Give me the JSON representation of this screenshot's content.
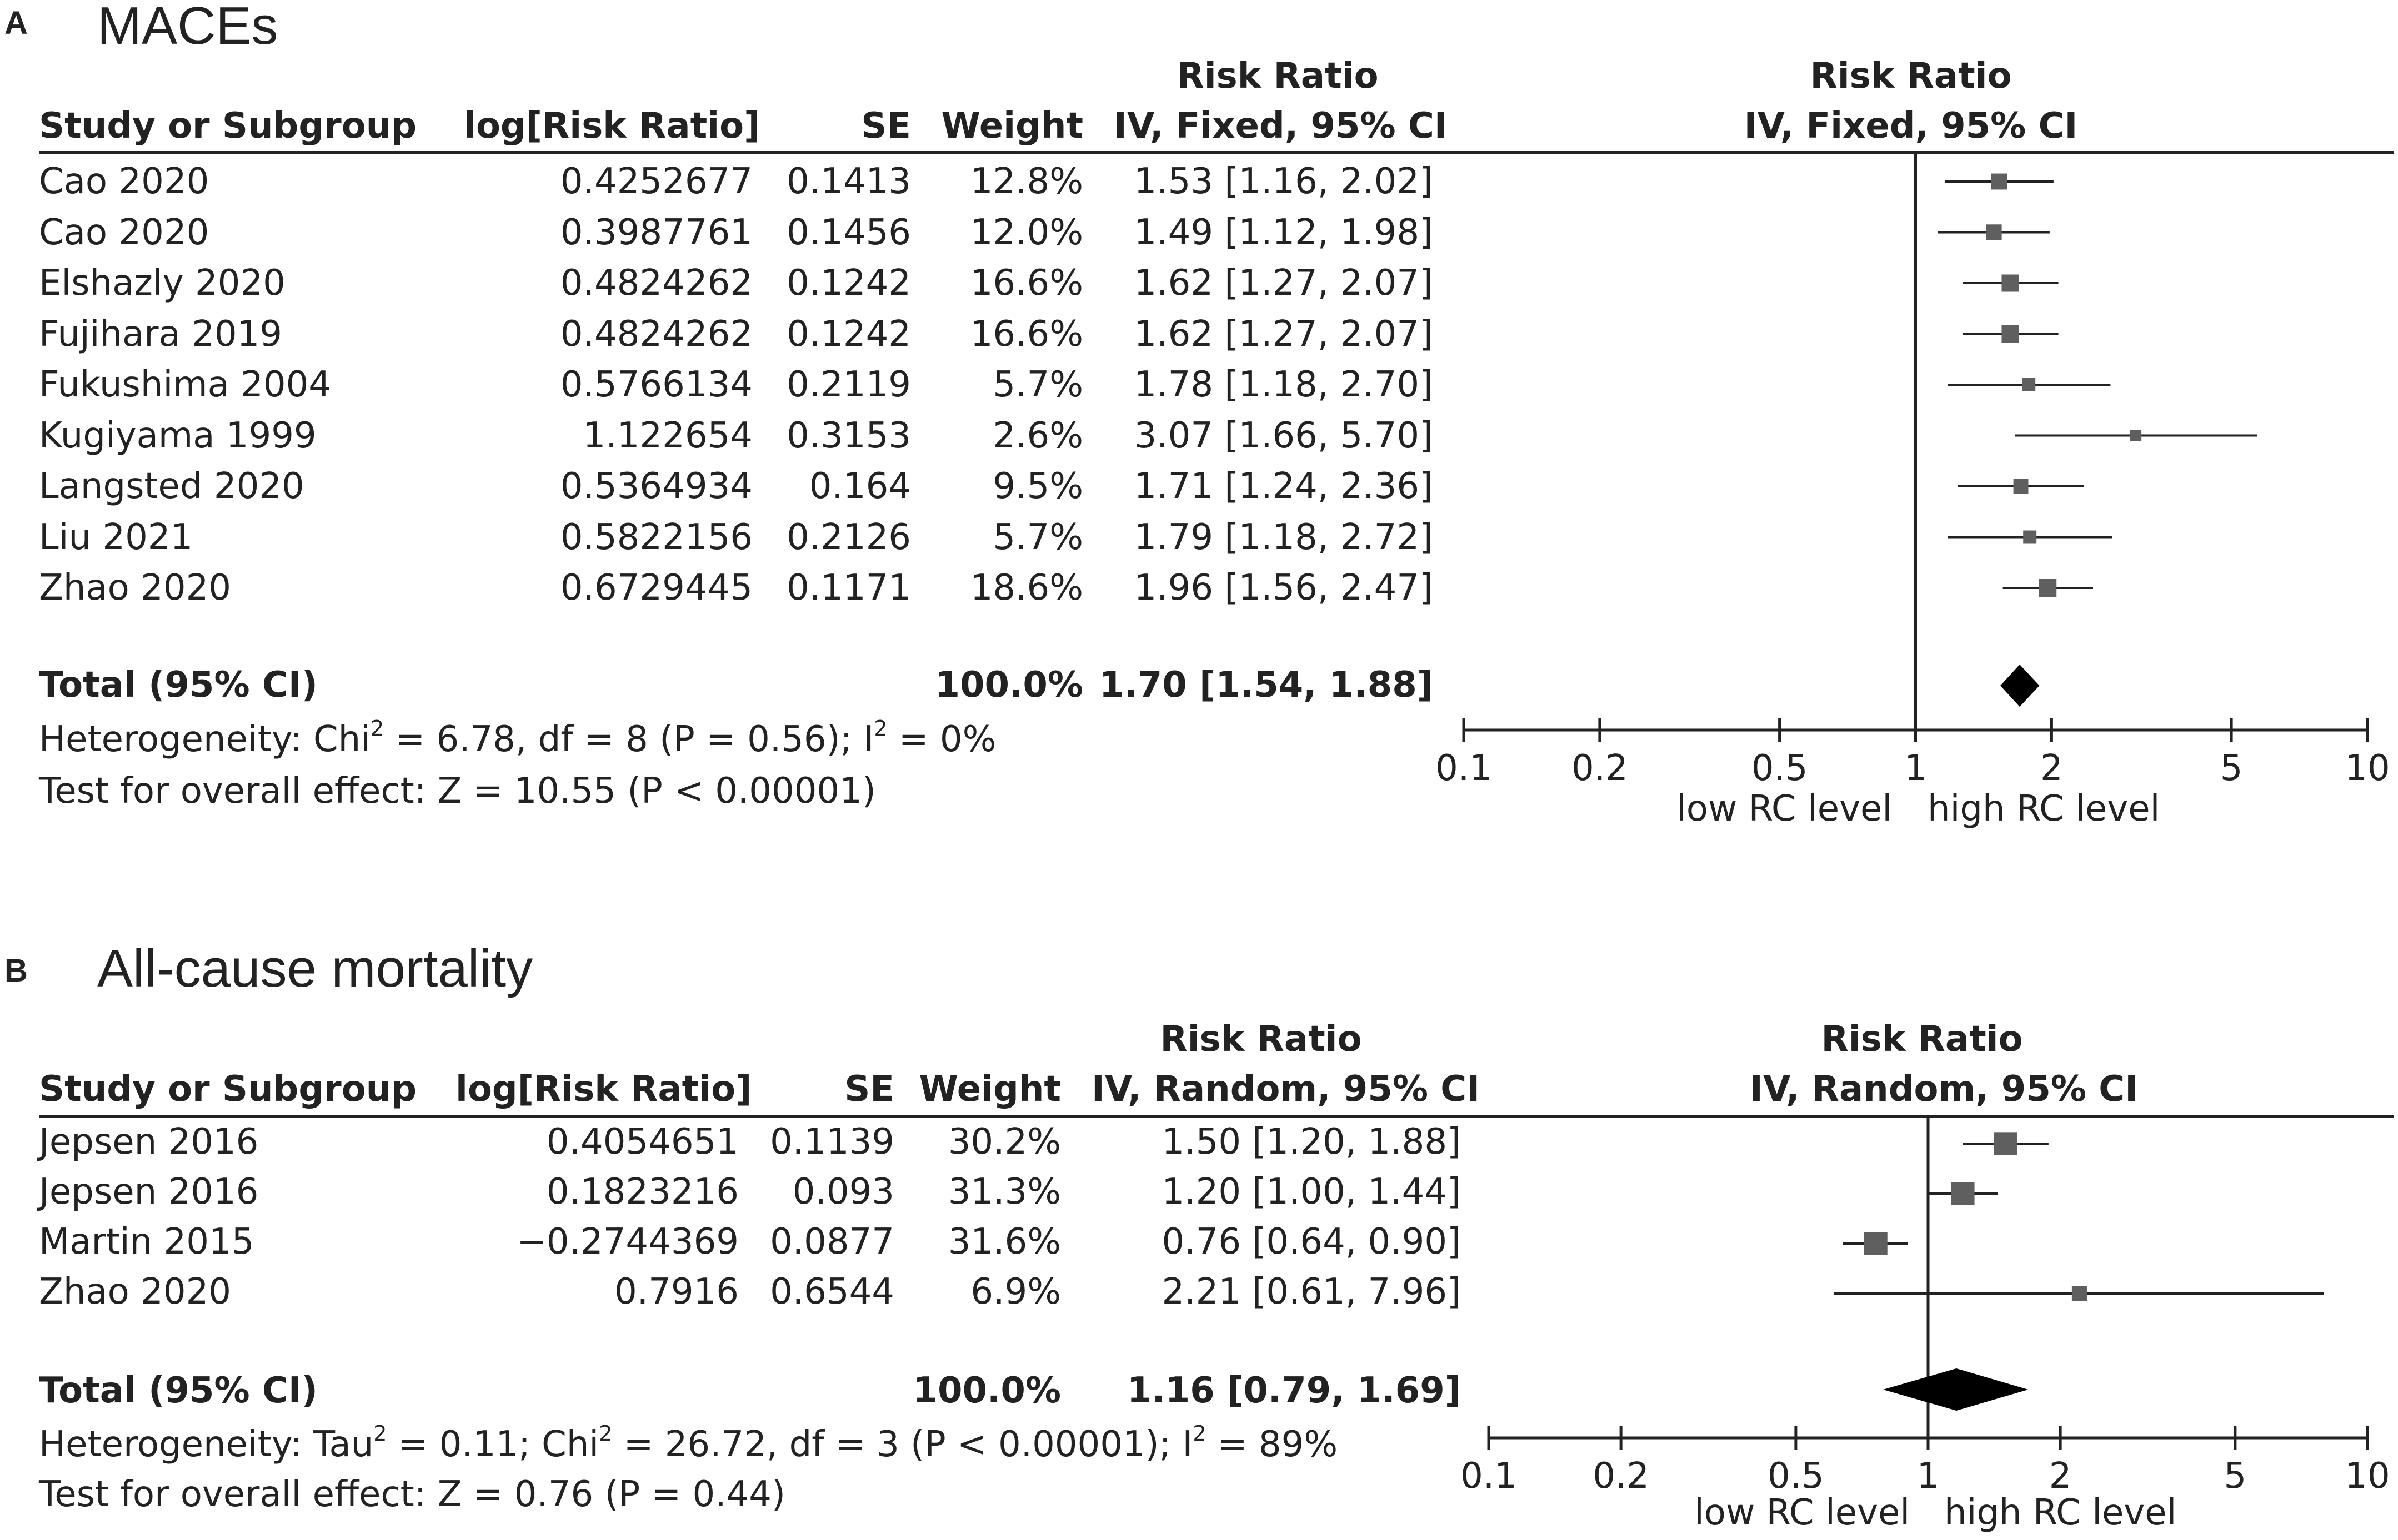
{
  "chart_data": [
    {
      "type": "forest",
      "panel": "A",
      "title": "MACEs",
      "columns": {
        "study": "Study or Subgroup",
        "log_rr": "log[Risk Ratio]",
        "se": "SE",
        "weight": "Weight",
        "rr_top": "Risk Ratio",
        "rr_bottom": "IV, Fixed, 95% CI",
        "plot_top": "Risk Ratio",
        "plot_bottom": "IV, Fixed, 95% CI"
      },
      "studies": [
        {
          "name": "Cao 2020",
          "log_rr": "0.4252677",
          "se": "0.1413",
          "weight": "12.8%",
          "ci_text": "1.53 [1.16, 2.02]",
          "rr": 1.53,
          "lo": 1.16,
          "hi": 2.02,
          "w": 12.8
        },
        {
          "name": "Cao  2020",
          "log_rr": "0.3987761",
          "se": "0.1456",
          "weight": "12.0%",
          "ci_text": "1.49 [1.12, 1.98]",
          "rr": 1.49,
          "lo": 1.12,
          "hi": 1.98,
          "w": 12.0
        },
        {
          "name": "Elshazly 2020",
          "log_rr": "0.4824262",
          "se": "0.1242",
          "weight": "16.6%",
          "ci_text": "1.62 [1.27, 2.07]",
          "rr": 1.62,
          "lo": 1.27,
          "hi": 2.07,
          "w": 16.6
        },
        {
          "name": "Fujihara 2019",
          "log_rr": "0.4824262",
          "se": "0.1242",
          "weight": "16.6%",
          "ci_text": "1.62 [1.27, 2.07]",
          "rr": 1.62,
          "lo": 1.27,
          "hi": 2.07,
          "w": 16.6
        },
        {
          "name": "Fukushima 2004",
          "log_rr": "0.5766134",
          "se": "0.2119",
          "weight": "5.7%",
          "ci_text": "1.78 [1.18, 2.70]",
          "rr": 1.78,
          "lo": 1.18,
          "hi": 2.7,
          "w": 5.7
        },
        {
          "name": "Kugiyama 1999",
          "log_rr": "1.122654",
          "se": "0.3153",
          "weight": "2.6%",
          "ci_text": "3.07 [1.66, 5.70]",
          "rr": 3.07,
          "lo": 1.66,
          "hi": 5.7,
          "w": 2.6
        },
        {
          "name": "Langsted 2020",
          "log_rr": "0.5364934",
          "se": "0.164",
          "weight": "9.5%",
          "ci_text": "1.71 [1.24, 2.36]",
          "rr": 1.71,
          "lo": 1.24,
          "hi": 2.36,
          "w": 9.5
        },
        {
          "name": "Liu 2021",
          "log_rr": "0.5822156",
          "se": "0.2126",
          "weight": "5.7%",
          "ci_text": "1.79 [1.18, 2.72]",
          "rr": 1.79,
          "lo": 1.18,
          "hi": 2.72,
          "w": 5.7
        },
        {
          "name": "Zhao 2020",
          "log_rr": "0.6729445",
          "se": "0.1171",
          "weight": "18.6%",
          "ci_text": "1.96 [1.56, 2.47]",
          "rr": 1.96,
          "lo": 1.56,
          "hi": 2.47,
          "w": 18.6
        }
      ],
      "total": {
        "label": "Total (95% CI)",
        "weight": "100.0%",
        "ci_text": "1.70 [1.54, 1.88]",
        "rr": 1.7,
        "lo": 1.54,
        "hi": 1.88
      },
      "heterogeneity_prefix": "Heterogeneity: Chi",
      "heterogeneity_mid": " = 6.78, df = 8 (P = 0.56); I",
      "heterogeneity_end": " = 0%",
      "overall_effect": "Test for overall effect: Z = 10.55 (P < 0.00001)",
      "axis": {
        "scale": "log",
        "min": 0.1,
        "max": 10,
        "ticks": [
          0.1,
          0.2,
          0.5,
          1,
          2,
          5,
          10
        ],
        "tick_labels": [
          "0.1",
          "0.2",
          "0.5",
          "1",
          "2",
          "5",
          "10"
        ]
      },
      "favours_left": "low RC level",
      "favours_right": "high RC level"
    },
    {
      "type": "forest",
      "panel": "B",
      "title": "All-cause mortality",
      "columns": {
        "study": "Study or Subgroup",
        "log_rr": "log[Risk Ratio]",
        "se": "SE",
        "weight": "Weight",
        "rr_top": "Risk Ratio",
        "rr_bottom": "IV, Random, 95% CI",
        "plot_top": "Risk Ratio",
        "plot_bottom": "IV, Random, 95% CI"
      },
      "studies": [
        {
          "name": "Jepsen 2016",
          "log_rr": "0.4054651",
          "se": "0.1139",
          "weight": "30.2%",
          "ci_text": "1.50 [1.20, 1.88]",
          "rr": 1.5,
          "lo": 1.2,
          "hi": 1.88,
          "w": 30.2
        },
        {
          "name": "Jepsen  2016",
          "log_rr": "0.1823216",
          "se": "0.093",
          "weight": "31.3%",
          "ci_text": "1.20 [1.00, 1.44]",
          "rr": 1.2,
          "lo": 1.0,
          "hi": 1.44,
          "w": 31.3
        },
        {
          "name": "Martin 2015",
          "log_rr": "−0.2744369",
          "se": "0.0877",
          "weight": "31.6%",
          "ci_text": "0.76 [0.64, 0.90]",
          "rr": 0.76,
          "lo": 0.64,
          "hi": 0.9,
          "w": 31.6
        },
        {
          "name": "Zhao 2020",
          "log_rr": "0.7916",
          "se": "0.6544",
          "weight": "6.9%",
          "ci_text": "2.21 [0.61, 7.96]",
          "rr": 2.21,
          "lo": 0.61,
          "hi": 7.96,
          "w": 6.9
        }
      ],
      "total": {
        "label": "Total (95% CI)",
        "weight": "100.0%",
        "ci_text": "1.16 [0.79, 1.69]",
        "rr": 1.16,
        "lo": 0.79,
        "hi": 1.69
      },
      "heterogeneity_prefix": "Heterogeneity: Tau",
      "heterogeneity_mid": " = 0.11; Chi",
      "heterogeneity_mid2": " = 26.72, df = 3 (P < 0.00001); I",
      "heterogeneity_end": " = 89%",
      "overall_effect": "Test for overall effect: Z = 0.76 (P = 0.44)",
      "axis": {
        "scale": "log",
        "min": 0.1,
        "max": 10,
        "ticks": [
          0.1,
          0.2,
          0.5,
          1,
          2,
          5,
          10
        ],
        "tick_labels": [
          "0.1",
          "0.2",
          "0.5",
          "1",
          "2",
          "5",
          "10"
        ]
      },
      "favours_left": "low RC level",
      "favours_right": "high RC level"
    }
  ],
  "superscript": "2"
}
